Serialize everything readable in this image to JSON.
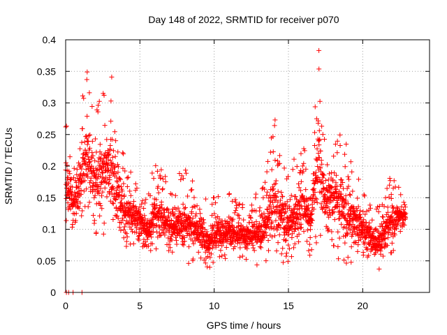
{
  "chart_data": {
    "type": "scatter",
    "title": "Day 148 of 2022, SRMTID for receiver p070",
    "xlabel": "GPS time / hours",
    "ylabel": "SRMTID / TECUs",
    "xlim": [
      0,
      24.5
    ],
    "ylim": [
      0,
      0.4
    ],
    "x_ticks": [
      0,
      5,
      10,
      15,
      20
    ],
    "x_tick_labels": [
      "0",
      "5",
      "10",
      "15",
      "20"
    ],
    "y_ticks": [
      0,
      0.05,
      0.1,
      0.15,
      0.2,
      0.25,
      0.3,
      0.35,
      0.4
    ],
    "y_tick_labels": [
      "0",
      "0.05",
      "0.1",
      "0.15",
      "0.2",
      "0.25",
      "0.3",
      "0.35",
      "0.4"
    ],
    "grid": true,
    "marker": "+",
    "marker_color": "#ff0000",
    "grid_color": "#a0a0a0",
    "x_range_of_data": [
      0,
      22.9
    ],
    "envelope": [
      {
        "x": 0.0,
        "low": 0.11,
        "high": 0.27
      },
      {
        "x": 0.5,
        "low": 0.08,
        "high": 0.22
      },
      {
        "x": 1.0,
        "low": 0.1,
        "high": 0.29
      },
      {
        "x": 1.4,
        "low": 0.12,
        "high": 0.35
      },
      {
        "x": 2.0,
        "low": 0.09,
        "high": 0.29
      },
      {
        "x": 3.0,
        "low": 0.09,
        "high": 0.34
      },
      {
        "x": 3.5,
        "low": 0.08,
        "high": 0.27
      },
      {
        "x": 4.0,
        "low": 0.07,
        "high": 0.21
      },
      {
        "x": 5.0,
        "low": 0.08,
        "high": 0.17
      },
      {
        "x": 5.5,
        "low": 0.04,
        "high": 0.16
      },
      {
        "x": 6.0,
        "low": 0.06,
        "high": 0.21
      },
      {
        "x": 7.0,
        "low": 0.05,
        "high": 0.18
      },
      {
        "x": 8.0,
        "low": 0.04,
        "high": 0.2
      },
      {
        "x": 9.0,
        "low": 0.05,
        "high": 0.17
      },
      {
        "x": 9.5,
        "low": 0.03,
        "high": 0.15
      },
      {
        "x": 10.0,
        "low": 0.05,
        "high": 0.15
      },
      {
        "x": 11.0,
        "low": 0.05,
        "high": 0.16
      },
      {
        "x": 12.0,
        "low": 0.05,
        "high": 0.14
      },
      {
        "x": 13.0,
        "low": 0.04,
        "high": 0.16
      },
      {
        "x": 13.5,
        "low": 0.05,
        "high": 0.19
      },
      {
        "x": 14.0,
        "low": 0.05,
        "high": 0.27
      },
      {
        "x": 15.0,
        "low": 0.04,
        "high": 0.2
      },
      {
        "x": 16.0,
        "low": 0.07,
        "high": 0.23
      },
      {
        "x": 16.5,
        "low": 0.05,
        "high": 0.2
      },
      {
        "x": 17.0,
        "low": 0.08,
        "high": 0.38
      },
      {
        "x": 17.5,
        "low": 0.07,
        "high": 0.22
      },
      {
        "x": 18.0,
        "low": 0.06,
        "high": 0.28
      },
      {
        "x": 19.0,
        "low": 0.04,
        "high": 0.23
      },
      {
        "x": 20.0,
        "low": 0.06,
        "high": 0.16
      },
      {
        "x": 21.0,
        "low": 0.03,
        "high": 0.14
      },
      {
        "x": 22.0,
        "low": 0.06,
        "high": 0.19
      },
      {
        "x": 22.9,
        "low": 0.09,
        "high": 0.16
      }
    ],
    "notable_points": [
      {
        "x": 0.05,
        "y": 0.0
      },
      {
        "x": 0.2,
        "y": 0.0
      },
      {
        "x": 0.5,
        "y": 0.0
      },
      {
        "x": 1.1,
        "y": 0.0
      },
      {
        "x": 1.45,
        "y": 0.349
      },
      {
        "x": 3.1,
        "y": 0.341
      },
      {
        "x": 17.05,
        "y": 0.383
      },
      {
        "x": 14.1,
        "y": 0.273
      }
    ]
  }
}
